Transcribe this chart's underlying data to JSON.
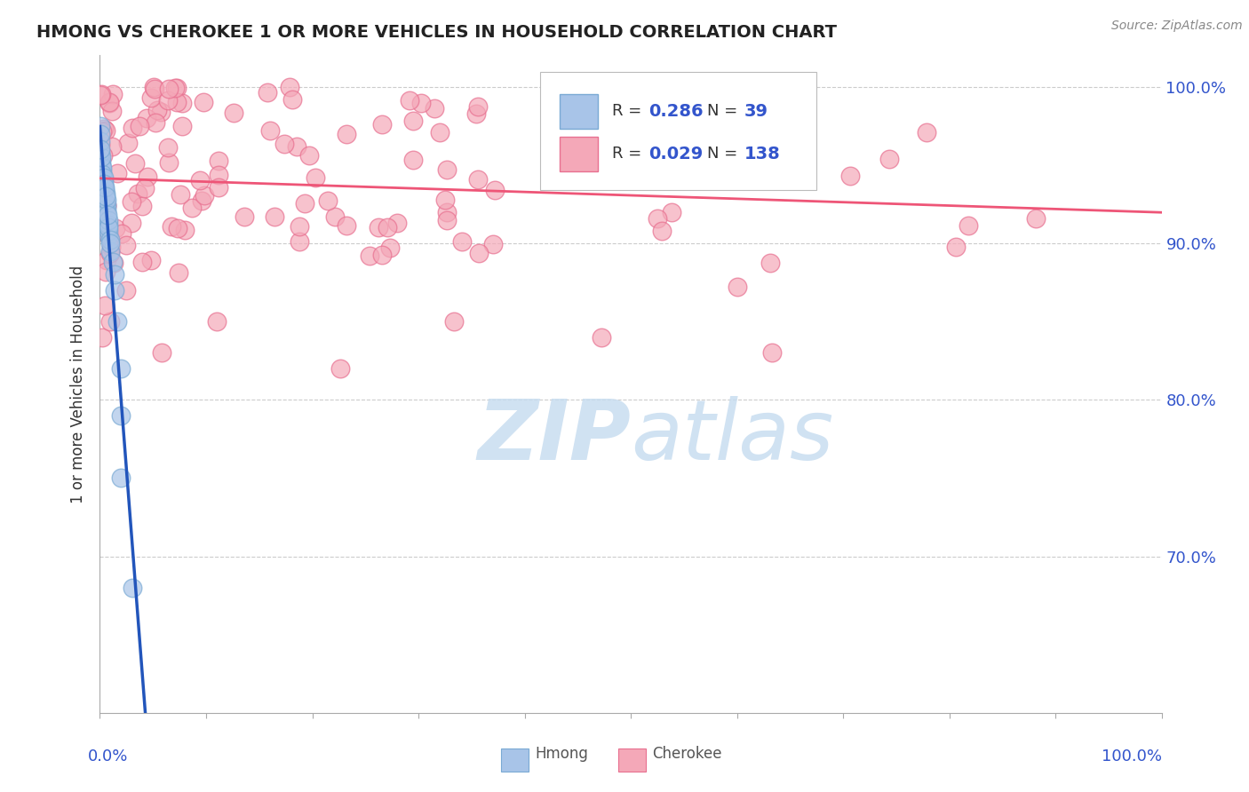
{
  "title": "HMONG VS CHEROKEE 1 OR MORE VEHICLES IN HOUSEHOLD CORRELATION CHART",
  "source_text": "Source: ZipAtlas.com",
  "ylabel": "1 or more Vehicles in Household",
  "legend_r1": "0.286",
  "legend_n1": "39",
  "legend_r2": "0.029",
  "legend_n2": "138",
  "hmong_color": "#a8c4e8",
  "hmong_edge_color": "#7aaad4",
  "cherokee_color": "#f4a8b8",
  "cherokee_edge_color": "#e87090",
  "hmong_line_color": "#2255bb",
  "cherokee_line_color": "#ee5577",
  "watermark_color": "#c8ddf0",
  "label_color": "#3355cc",
  "title_color": "#222222",
  "background_color": "#ffffff",
  "grid_color": "#cccccc",
  "y_min": 0.6,
  "y_max": 1.02,
  "x_min": 0.0,
  "x_max": 1.0,
  "y_ticks": [
    0.7,
    0.8,
    0.9,
    1.0
  ],
  "y_tick_labels": [
    "70.0%",
    "80.0%",
    "90.0%",
    "100.0%"
  ]
}
